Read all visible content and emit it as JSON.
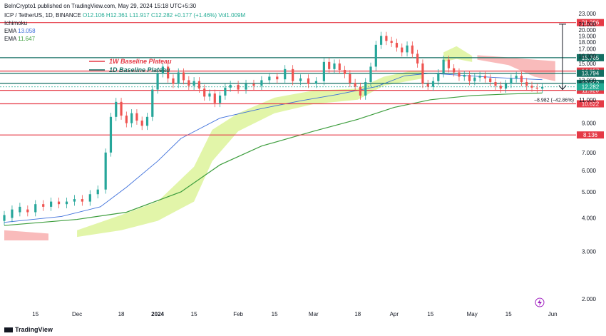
{
  "header": {
    "publisher": "BeInCrypto1 published on TradingView.com, May 29, 2024 15:18 UTC+5:30",
    "symbol": "ICP / TetherUS, 1D, BINANCE",
    "o": "O12.106",
    "h": "H12.361",
    "l": "L11.917",
    "c": "C12.282",
    "chg": "+0.177 (+1.46%)",
    "vol": "Vol1.009M",
    "ind_ichimoku": "Ichimoku",
    "ind_ema1_label": "EMA",
    "ind_ema1_val": "13.058",
    "ind_ema2_label": "EMA",
    "ind_ema2_val": "11.647"
  },
  "branding": {
    "logo": "TradingView"
  },
  "chart_data": {
    "type": "candlestick",
    "legend": [
      {
        "label": "1W Baseline Plateau",
        "color": "#e53945"
      },
      {
        "label": "1D Baseline Plateau",
        "color": "#136f63"
      }
    ],
    "y_ticks": [
      "23.000",
      "21.000",
      "20.000",
      "19.000",
      "18.000",
      "17.000",
      "16.000",
      "15.000",
      "13.000",
      "11.000",
      "9.000",
      "7.000",
      "6.000",
      "5.000",
      "4.000",
      "3.000",
      "2.000"
    ],
    "y_tick_values": [
      23,
      21,
      20,
      19,
      18,
      17,
      16,
      15,
      13,
      11,
      9,
      7,
      6,
      5,
      4,
      3,
      2
    ],
    "x_ticks": [
      "15",
      "Dec",
      "18",
      "2024",
      "15",
      "Feb",
      "15",
      "Mar",
      "18",
      "Apr",
      "15",
      "May",
      "15",
      "Jun"
    ],
    "x_tick_bold": [
      false,
      false,
      false,
      true,
      false,
      false,
      false,
      false,
      false,
      false,
      false,
      false,
      false,
      false
    ],
    "x_tick_dates": [
      "2023-11-15",
      "2023-12-01",
      "2023-12-18",
      "2024-01-01",
      "2024-01-15",
      "2024-02-01",
      "2024-02-15",
      "2024-03-01",
      "2024-03-18",
      "2024-04-01",
      "2024-04-15",
      "2024-05-01",
      "2024-05-15",
      "2024-06-01"
    ],
    "levels": [
      {
        "value": 21.286,
        "label": "21.286",
        "color": "#e53945"
      },
      {
        "value": 15.765,
        "label": "15.765",
        "color": "#136f63"
      },
      {
        "value": 14.057,
        "label": "14.057",
        "color": "#e53945"
      },
      {
        "value": 13.794,
        "label": "13.794",
        "color": "#136f63"
      },
      {
        "value": 12.652,
        "label": "12.652",
        "color": "#136f63"
      },
      {
        "value": 11.92,
        "label": "11.920",
        "color": "#e53945"
      },
      {
        "value": 10.622,
        "label": "10.622",
        "color": "#e53945"
      },
      {
        "value": 8.136,
        "label": "8.136",
        "color": "#e53945"
      }
    ],
    "price_label": {
      "value": 12.282,
      "label": "12.282",
      "color": "#22ab94"
    },
    "projection": {
      "from": 21.0,
      "to": 12.0,
      "label": "−8.982 (−42.86%)"
    },
    "ema_fast": {
      "name": "EMA",
      "value": 13.058,
      "color": "#3d6fdb",
      "points": [
        [
          "2023-11-03",
          3.85
        ],
        [
          "2023-11-25",
          4.05
        ],
        [
          "2023-12-10",
          4.4
        ],
        [
          "2023-12-20",
          5.2
        ],
        [
          "2024-01-01",
          6.5
        ],
        [
          "2024-01-10",
          7.9
        ],
        [
          "2024-01-25",
          9.4
        ],
        [
          "2024-02-10",
          10.2
        ],
        [
          "2024-02-25",
          10.9
        ],
        [
          "2024-03-10",
          11.5
        ],
        [
          "2024-03-25",
          12.3
        ],
        [
          "2024-04-05",
          13.5
        ],
        [
          "2024-04-15",
          13.8
        ],
        [
          "2024-04-25",
          13.6
        ],
        [
          "2024-05-10",
          13.3
        ],
        [
          "2024-05-28",
          13.06
        ]
      ]
    },
    "ema_slow": {
      "name": "EMA",
      "value": 11.647,
      "color": "#3e9e3e",
      "points": [
        [
          "2023-11-03",
          3.75
        ],
        [
          "2023-12-01",
          3.95
        ],
        [
          "2023-12-20",
          4.2
        ],
        [
          "2024-01-10",
          5.0
        ],
        [
          "2024-01-25",
          6.3
        ],
        [
          "2024-02-10",
          7.4
        ],
        [
          "2024-03-01",
          8.4
        ],
        [
          "2024-03-18",
          9.3
        ],
        [
          "2024-04-01",
          10.3
        ],
        [
          "2024-04-15",
          11.0
        ],
        [
          "2024-05-01",
          11.4
        ],
        [
          "2024-05-15",
          11.55
        ],
        [
          "2024-05-28",
          11.65
        ]
      ]
    },
    "cloud_bull": [
      [
        "2023-12-01",
        3.4,
        3.6
      ],
      [
        "2023-12-18",
        3.6,
        4.1
      ],
      [
        "2024-01-01",
        3.9,
        4.6
      ],
      [
        "2024-01-15",
        4.6,
        6.2
      ],
      [
        "2024-01-22",
        6.5,
        8.5
      ],
      [
        "2024-02-01",
        8.4,
        9.8
      ],
      [
        "2024-02-15",
        9.8,
        11.2
      ],
      [
        "2024-03-01",
        10.6,
        11.9
      ],
      [
        "2024-03-18",
        11.0,
        12.1
      ],
      [
        "2024-03-28",
        12.4,
        13.4
      ],
      [
        "2024-04-08",
        13.0,
        14.1
      ],
      [
        "2024-04-12",
        13.2,
        14.0
      ]
    ],
    "cloud_bull_top": [
      [
        "2024-04-20",
        15.2,
        16.5
      ],
      [
        "2024-04-25",
        15.6,
        17.4
      ],
      [
        "2024-05-01",
        15.2,
        16.0
      ]
    ],
    "cloud_bear": [
      [
        "2023-11-03",
        3.3,
        3.6
      ],
      [
        "2023-11-20",
        3.3,
        3.5
      ],
      [
        "2024-05-03",
        15.5,
        16.1
      ],
      [
        "2024-05-15",
        14.8,
        15.8
      ],
      [
        "2024-05-25",
        13.4,
        15.5
      ],
      [
        "2024-06-02",
        12.9,
        15.3
      ]
    ],
    "candles": [
      [
        "2023-11-03",
        3.9,
        4.1
      ],
      [
        "2023-11-06",
        4.0,
        4.3
      ],
      [
        "2023-11-09",
        4.2,
        4.4
      ],
      [
        "2023-11-12",
        4.3,
        4.2
      ],
      [
        "2023-11-15",
        4.2,
        4.5
      ],
      [
        "2023-11-18",
        4.5,
        4.4
      ],
      [
        "2023-11-21",
        4.4,
        4.6
      ],
      [
        "2023-11-24",
        4.6,
        4.5
      ],
      [
        "2023-11-27",
        4.5,
        4.6
      ],
      [
        "2023-11-30",
        4.6,
        4.7
      ],
      [
        "2023-12-03",
        4.7,
        4.6
      ],
      [
        "2023-12-06",
        4.6,
        4.9
      ],
      [
        "2023-12-09",
        4.9,
        5.1
      ],
      [
        "2023-12-12",
        5.1,
        7.0
      ],
      [
        "2023-12-14",
        7.0,
        9.5
      ],
      [
        "2023-12-16",
        9.5,
        10.8
      ],
      [
        "2023-12-18",
        10.8,
        9.6
      ],
      [
        "2023-12-20",
        9.6,
        9.0
      ],
      [
        "2023-12-22",
        9.0,
        9.8
      ],
      [
        "2023-12-24",
        9.8,
        9.2
      ],
      [
        "2023-12-26",
        9.2,
        8.8
      ],
      [
        "2023-12-28",
        8.8,
        9.5
      ],
      [
        "2023-12-30",
        9.5,
        12.0
      ],
      [
        "2024-01-01",
        12.0,
        13.8
      ],
      [
        "2024-01-03",
        13.8,
        14.6
      ],
      [
        "2024-01-05",
        14.6,
        13.2
      ],
      [
        "2024-01-07",
        13.2,
        12.6
      ],
      [
        "2024-01-09",
        12.6,
        13.9
      ],
      [
        "2024-01-11",
        13.9,
        13.0
      ],
      [
        "2024-01-13",
        13.0,
        12.4
      ],
      [
        "2024-01-15",
        12.4,
        12.9
      ],
      [
        "2024-01-17",
        12.9,
        12.1
      ],
      [
        "2024-01-19",
        12.1,
        11.3
      ],
      [
        "2024-01-21",
        11.3,
        11.6
      ],
      [
        "2024-01-23",
        11.6,
        10.7
      ],
      [
        "2024-01-25",
        10.7,
        11.4
      ],
      [
        "2024-01-27",
        11.4,
        12.2
      ],
      [
        "2024-01-29",
        12.2,
        12.5
      ],
      [
        "2024-02-01",
        12.5,
        12.0
      ],
      [
        "2024-02-04",
        12.0,
        12.6
      ],
      [
        "2024-02-07",
        12.6,
        12.4
      ],
      [
        "2024-02-10",
        12.4,
        13.0
      ],
      [
        "2024-02-13",
        13.0,
        13.4
      ],
      [
        "2024-02-16",
        13.4,
        13.1
      ],
      [
        "2024-02-19",
        13.1,
        14.3
      ],
      [
        "2024-02-22",
        14.3,
        12.9
      ],
      [
        "2024-02-25",
        12.9,
        13.2
      ],
      [
        "2024-02-28",
        13.2,
        12.6
      ],
      [
        "2024-03-02",
        12.6,
        12.9
      ],
      [
        "2024-03-05",
        12.9,
        15.2
      ],
      [
        "2024-03-07",
        15.2,
        14.3
      ],
      [
        "2024-03-09",
        14.3,
        15.0
      ],
      [
        "2024-03-11",
        15.0,
        14.2
      ],
      [
        "2024-03-13",
        14.2,
        13.7
      ],
      [
        "2024-03-15",
        13.7,
        12.7
      ],
      [
        "2024-03-17",
        12.7,
        12.3
      ],
      [
        "2024-03-19",
        12.3,
        11.4
      ],
      [
        "2024-03-21",
        11.4,
        12.8
      ],
      [
        "2024-03-23",
        12.8,
        14.6
      ],
      [
        "2024-03-25",
        14.6,
        17.6
      ],
      [
        "2024-03-27",
        17.6,
        19.0
      ],
      [
        "2024-03-29",
        19.0,
        18.2
      ],
      [
        "2024-03-31",
        18.2,
        17.9
      ],
      [
        "2024-04-02",
        17.9,
        17.2
      ],
      [
        "2024-04-04",
        17.2,
        16.5
      ],
      [
        "2024-04-06",
        16.5,
        17.5
      ],
      [
        "2024-04-08",
        17.5,
        16.3
      ],
      [
        "2024-04-10",
        16.3,
        15.0
      ],
      [
        "2024-04-12",
        15.0,
        12.6
      ],
      [
        "2024-04-14",
        12.6,
        12.3
      ],
      [
        "2024-04-16",
        12.3,
        12.9
      ],
      [
        "2024-04-18",
        12.9,
        13.8
      ],
      [
        "2024-04-20",
        13.8,
        15.5
      ],
      [
        "2024-04-22",
        15.5,
        14.4
      ],
      [
        "2024-04-24",
        14.4,
        13.9
      ],
      [
        "2024-04-26",
        13.9,
        13.4
      ],
      [
        "2024-04-28",
        13.4,
        13.6
      ],
      [
        "2024-04-30",
        13.6,
        12.9
      ],
      [
        "2024-05-02",
        12.9,
        13.3
      ],
      [
        "2024-05-04",
        13.3,
        13.5
      ],
      [
        "2024-05-06",
        13.5,
        13.2
      ],
      [
        "2024-05-08",
        13.2,
        12.8
      ],
      [
        "2024-05-10",
        12.8,
        12.4
      ],
      [
        "2024-05-12",
        12.4,
        12.1
      ],
      [
        "2024-05-14",
        12.1,
        12.6
      ],
      [
        "2024-05-16",
        12.6,
        13.2
      ],
      [
        "2024-05-18",
        13.2,
        13.5
      ],
      [
        "2024-05-20",
        13.5,
        12.8
      ],
      [
        "2024-05-22",
        12.8,
        12.4
      ],
      [
        "2024-05-24",
        12.4,
        12.2
      ],
      [
        "2024-05-26",
        12.2,
        12.1
      ],
      [
        "2024-05-28",
        12.1,
        12.28
      ]
    ]
  }
}
